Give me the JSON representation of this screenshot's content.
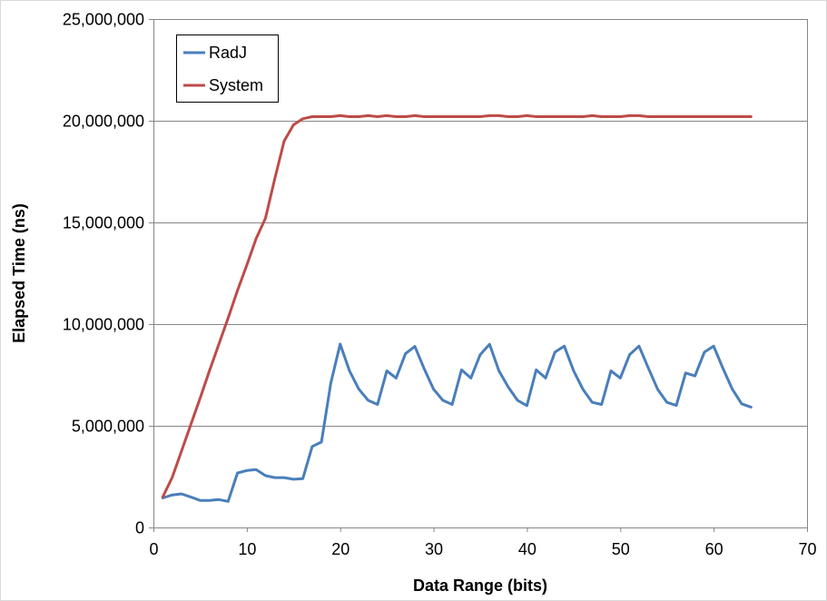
{
  "chart_data": {
    "type": "line",
    "title": "",
    "xlabel": "Data Range (bits)",
    "ylabel": "Elapsed Time (ns)",
    "xlim": [
      0,
      70
    ],
    "ylim": [
      0,
      25000000
    ],
    "x_ticks": [
      "0",
      "10",
      "20",
      "30",
      "40",
      "50",
      "60",
      "70"
    ],
    "x_tick_values": [
      0,
      10,
      20,
      30,
      40,
      50,
      60,
      70
    ],
    "y_ticks": [
      "0",
      "5,000,000",
      "10,000,000",
      "15,000,000",
      "20,000,000",
      "25,000,000"
    ],
    "y_tick_values": [
      0,
      5000000,
      10000000,
      15000000,
      20000000,
      25000000
    ],
    "grid": "horizontal",
    "legend_position": "top-left",
    "x": [
      1,
      2,
      3,
      4,
      5,
      6,
      7,
      8,
      9,
      10,
      11,
      12,
      13,
      14,
      15,
      16,
      17,
      18,
      19,
      20,
      21,
      22,
      23,
      24,
      25,
      26,
      27,
      28,
      29,
      30,
      31,
      32,
      33,
      34,
      35,
      36,
      37,
      38,
      39,
      40,
      41,
      42,
      43,
      44,
      45,
      46,
      47,
      48,
      49,
      50,
      51,
      52,
      53,
      54,
      55,
      56,
      57,
      58,
      59,
      60,
      61,
      62,
      63,
      64
    ],
    "series": [
      {
        "name": "RadJ",
        "color": "#4a7ebb",
        "values": [
          1450000,
          1600000,
          1650000,
          1500000,
          1330000,
          1330000,
          1370000,
          1280000,
          2680000,
          2800000,
          2850000,
          2550000,
          2450000,
          2450000,
          2370000,
          2400000,
          3980000,
          4200000,
          7100000,
          9020000,
          7700000,
          6800000,
          6250000,
          6050000,
          7700000,
          7350000,
          8550000,
          8900000,
          7800000,
          6800000,
          6250000,
          6050000,
          7750000,
          7350000,
          8500000,
          9010000,
          7700000,
          6900000,
          6250000,
          5990000,
          7750000,
          7350000,
          8620000,
          8920000,
          7700000,
          6800000,
          6150000,
          6050000,
          7700000,
          7350000,
          8500000,
          8920000,
          7850000,
          6800000,
          6150000,
          6000000,
          7600000,
          7450000,
          8620000,
          8920000,
          7820000,
          6800000,
          6080000,
          5920000
        ]
      },
      {
        "name": "System",
        "color": "#be4b48",
        "values": [
          1500000,
          2450000,
          3750000,
          5050000,
          6350000,
          7700000,
          9000000,
          10300000,
          11650000,
          12900000,
          14200000,
          15200000,
          17150000,
          19000000,
          19800000,
          20100000,
          20200000,
          20200000,
          20200000,
          20250000,
          20200000,
          20200000,
          20250000,
          20200000,
          20250000,
          20200000,
          20200000,
          20250000,
          20200000,
          20200000,
          20200000,
          20200000,
          20200000,
          20200000,
          20200000,
          20250000,
          20250000,
          20200000,
          20200000,
          20250000,
          20200000,
          20200000,
          20200000,
          20200000,
          20200000,
          20200000,
          20250000,
          20200000,
          20200000,
          20200000,
          20250000,
          20250000,
          20200000,
          20200000,
          20200000,
          20200000,
          20200000,
          20200000,
          20200000,
          20200000,
          20200000,
          20200000,
          20200000,
          20200000
        ]
      }
    ]
  }
}
